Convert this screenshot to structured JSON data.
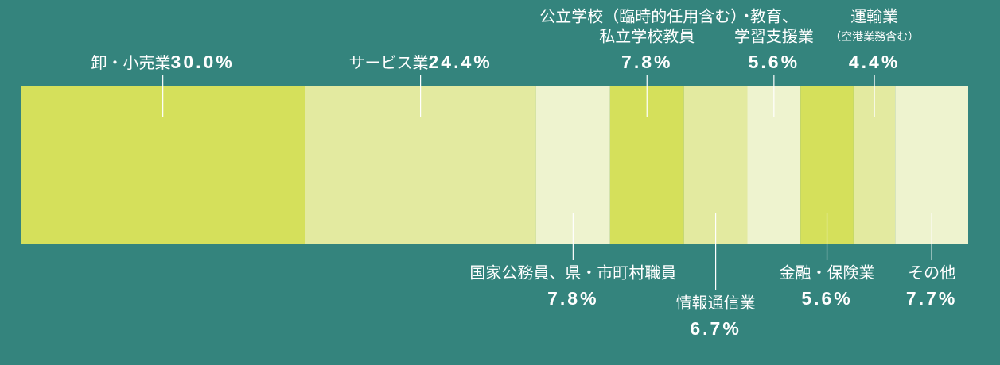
{
  "chart_data": {
    "type": "stacked-bar-100",
    "categories": [
      [
        "卸・小売業"
      ],
      [
        "サービス業"
      ],
      [
        "国家公務員、県・市町村職員"
      ],
      [
        "公立学校（臨時的任用含む）・",
        "私立学校教員"
      ],
      [
        "情報通信業"
      ],
      [
        "教育、",
        "学習支援業"
      ],
      [
        "金融・保険業"
      ],
      [
        "運輸業",
        "（空港業務含む）"
      ],
      [
        "その他"
      ]
    ],
    "values": [
      30,
      24.4,
      7.8,
      7.8,
      6.7,
      5.6,
      5.6,
      4.4,
      7.7
    ],
    "value_labels": [
      "30.0%",
      "24.4%",
      "7.8%",
      "7.8%",
      "6.7%",
      "5.6%",
      "5.6%",
      "4.4%",
      "7.7%"
    ],
    "colors": [
      "#d5e05b",
      "#e3eaa0",
      "#eef3cf",
      "#d5e05b",
      "#e3eaa0",
      "#eef3cf",
      "#d5e05b",
      "#e3eaa0",
      "#eef3cf"
    ]
  }
}
